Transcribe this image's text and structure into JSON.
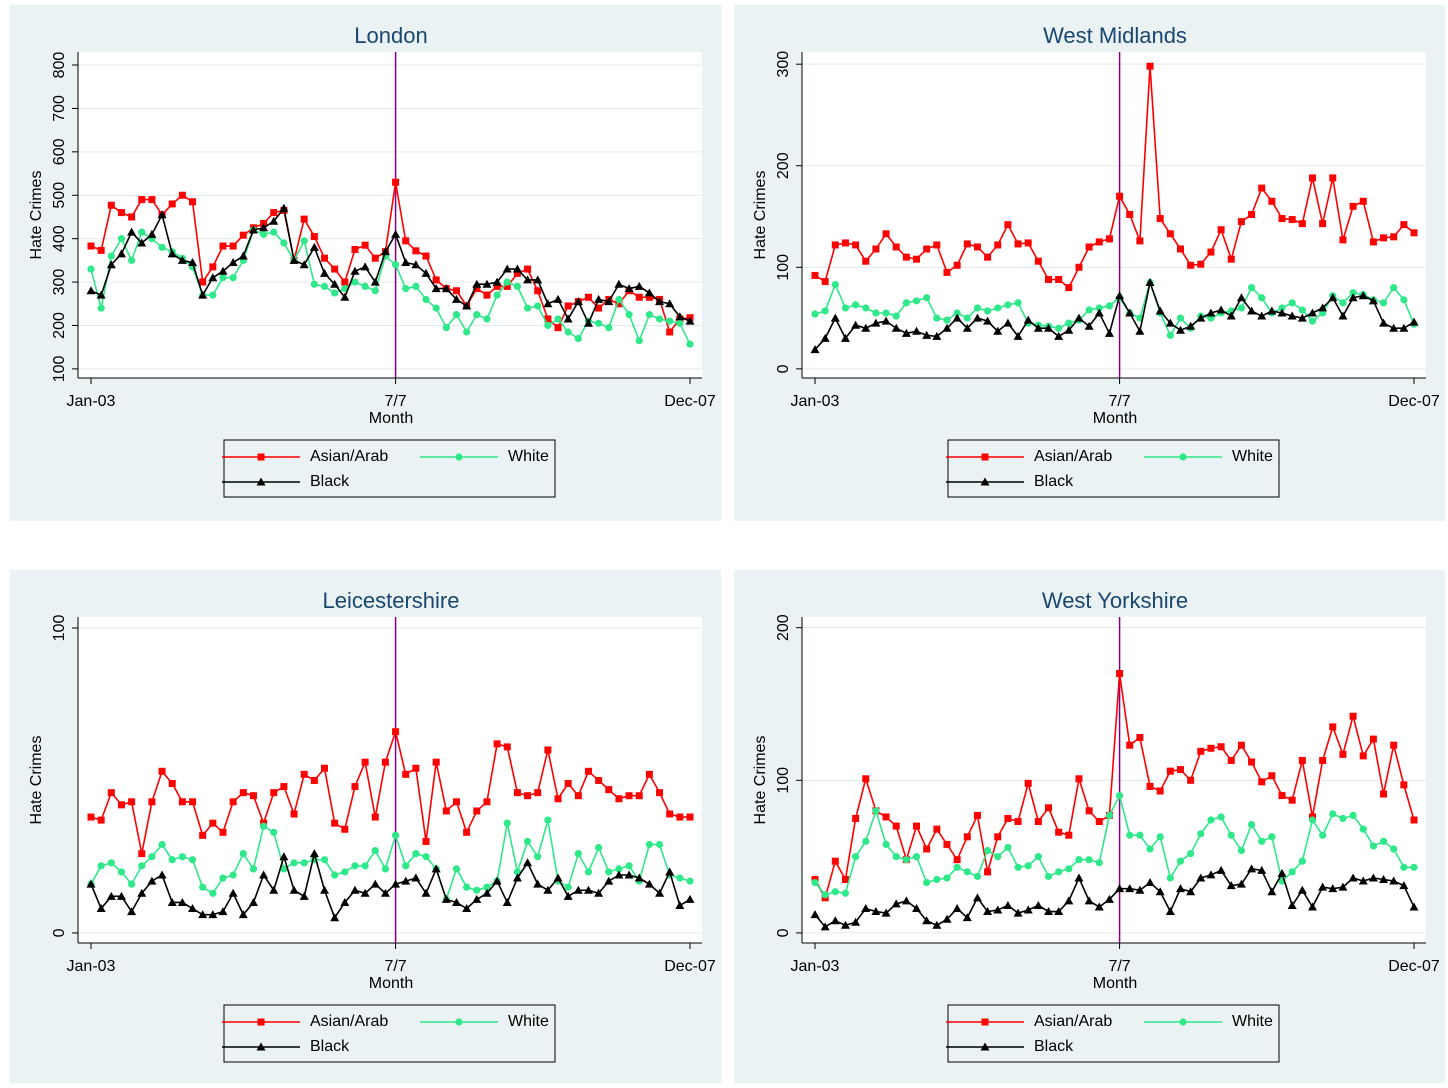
{
  "chart_data": [
    {
      "type": "line",
      "title": "London",
      "y_label": "Hate Crimes",
      "x_label": "Month",
      "legend_position": "bottom",
      "grid": true,
      "categories": [
        "Jan-03",
        null,
        null,
        null,
        null,
        null,
        null,
        null,
        null,
        null,
        null,
        null,
        null,
        null,
        null,
        null,
        null,
        null,
        null,
        null,
        null,
        null,
        null,
        null,
        null,
        null,
        null,
        null,
        null,
        null,
        "7/7",
        null,
        null,
        null,
        null,
        null,
        null,
        null,
        null,
        null,
        null,
        null,
        null,
        null,
        null,
        null,
        null,
        null,
        null,
        null,
        null,
        null,
        null,
        null,
        null,
        null,
        null,
        null,
        null,
        "Dec-07"
      ],
      "ylim": [
        79,
        830
      ],
      "yticks": [
        100,
        200,
        300,
        400,
        500,
        600,
        700,
        800
      ],
      "series": [
        {
          "name": "Asian/Arab",
          "color": "#ff0000",
          "marker": "square",
          "values": [
            383,
            373,
            477,
            460,
            450,
            490,
            490,
            455,
            480,
            500,
            485,
            300,
            335,
            383,
            383,
            408,
            425,
            435,
            460,
            465,
            350,
            445,
            405,
            355,
            330,
            300,
            375,
            385,
            355,
            370,
            530,
            395,
            372,
            360,
            305,
            285,
            280,
            245,
            285,
            270,
            290,
            290,
            320,
            330,
            280,
            215,
            195,
            245,
            255,
            265,
            240,
            260,
            250,
            280,
            265,
            265,
            260,
            185,
            215,
            218
          ]
        },
        {
          "name": "White",
          "color": "#2ee88a",
          "marker": "circle",
          "values": [
            330,
            240,
            360,
            400,
            350,
            415,
            400,
            380,
            370,
            355,
            335,
            270,
            270,
            310,
            310,
            350,
            420,
            410,
            415,
            390,
            350,
            395,
            295,
            290,
            275,
            285,
            300,
            290,
            280,
            360,
            340,
            285,
            290,
            260,
            240,
            195,
            225,
            185,
            225,
            215,
            270,
            300,
            290,
            240,
            245,
            200,
            215,
            185,
            170,
            210,
            205,
            195,
            260,
            225,
            165,
            225,
            215,
            210,
            205,
            157
          ]
        },
        {
          "name": "Black",
          "color": "#000000",
          "marker": "triangle",
          "values": [
            280,
            270,
            340,
            365,
            415,
            390,
            410,
            455,
            365,
            350,
            345,
            270,
            310,
            325,
            345,
            360,
            420,
            425,
            440,
            470,
            350,
            340,
            380,
            320,
            295,
            265,
            325,
            335,
            300,
            370,
            410,
            345,
            340,
            320,
            285,
            285,
            260,
            245,
            295,
            295,
            300,
            330,
            330,
            305,
            305,
            250,
            260,
            215,
            255,
            205,
            260,
            255,
            295,
            285,
            290,
            275,
            255,
            250,
            220,
            210
          ]
        }
      ]
    },
    {
      "type": "line",
      "title": "West Midlands",
      "y_label": "Hate Crimes",
      "x_label": "Month",
      "legend_position": "bottom",
      "grid": true,
      "categories": [
        "Jan-03",
        null,
        null,
        null,
        null,
        null,
        null,
        null,
        null,
        null,
        null,
        null,
        null,
        null,
        null,
        null,
        null,
        null,
        null,
        null,
        null,
        null,
        null,
        null,
        null,
        null,
        null,
        null,
        null,
        null,
        "7/7",
        null,
        null,
        null,
        null,
        null,
        null,
        null,
        null,
        null,
        null,
        null,
        null,
        null,
        null,
        null,
        null,
        null,
        null,
        null,
        null,
        null,
        null,
        null,
        null,
        null,
        null,
        null,
        null,
        "Dec-07"
      ],
      "ylim": [
        -9,
        312
      ],
      "yticks": [
        0,
        100,
        200,
        300
      ],
      "series": [
        {
          "name": "Asian/Arab",
          "color": "#ff0000",
          "marker": "square",
          "values": [
            92,
            86,
            122,
            124,
            122,
            106,
            118,
            133,
            120,
            110,
            108,
            118,
            122,
            95,
            102,
            123,
            120,
            110,
            122,
            142,
            123,
            124,
            106,
            88,
            88,
            80,
            100,
            120,
            125,
            128,
            170,
            152,
            126,
            298,
            148,
            133,
            118,
            102,
            103,
            115,
            137,
            108,
            145,
            152,
            178,
            165,
            148,
            147,
            143,
            188,
            143,
            188,
            127,
            160,
            165,
            125,
            129,
            130,
            142,
            134
          ]
        },
        {
          "name": "White",
          "color": "#2ee88a",
          "marker": "circle",
          "values": [
            54,
            57,
            83,
            60,
            63,
            60,
            55,
            55,
            52,
            65,
            67,
            70,
            50,
            48,
            55,
            50,
            60,
            57,
            60,
            63,
            65,
            45,
            43,
            42,
            40,
            45,
            48,
            58,
            60,
            62,
            70,
            55,
            50,
            85,
            55,
            33,
            50,
            40,
            52,
            50,
            55,
            57,
            60,
            80,
            70,
            55,
            60,
            65,
            58,
            47,
            55,
            72,
            65,
            75,
            73,
            68,
            65,
            80,
            68,
            44
          ]
        },
        {
          "name": "Black",
          "color": "#000000",
          "marker": "triangle",
          "values": [
            19,
            30,
            50,
            30,
            43,
            40,
            45,
            47,
            40,
            35,
            37,
            33,
            32,
            40,
            50,
            40,
            50,
            47,
            37,
            45,
            32,
            48,
            40,
            40,
            32,
            38,
            50,
            42,
            55,
            35,
            72,
            55,
            37,
            85,
            57,
            45,
            38,
            42,
            50,
            55,
            58,
            52,
            70,
            57,
            52,
            57,
            55,
            52,
            50,
            55,
            60,
            70,
            52,
            70,
            72,
            67,
            45,
            40,
            40,
            46
          ]
        }
      ]
    },
    {
      "type": "line",
      "title": "Leicestershire",
      "y_label": "Hate Crimes",
      "x_label": "Month",
      "legend_position": "bottom",
      "grid": true,
      "categories": [
        "Jan-03",
        null,
        null,
        null,
        null,
        null,
        null,
        null,
        null,
        null,
        null,
        null,
        null,
        null,
        null,
        null,
        null,
        null,
        null,
        null,
        null,
        null,
        null,
        null,
        null,
        null,
        null,
        null,
        null,
        null,
        "7/7",
        null,
        null,
        null,
        null,
        null,
        null,
        null,
        null,
        null,
        null,
        null,
        null,
        null,
        null,
        null,
        null,
        null,
        null,
        null,
        null,
        null,
        null,
        null,
        null,
        null,
        null,
        null,
        null,
        "Dec-07"
      ],
      "ylim": [
        -3.3,
        103.6
      ],
      "yticks": [
        0,
        100
      ],
      "series": [
        {
          "name": "Asian/Arab",
          "color": "#ff0000",
          "marker": "square",
          "values": [
            38,
            37,
            46,
            42,
            43,
            26,
            43,
            53,
            49,
            43,
            43,
            32,
            36,
            33,
            43,
            46,
            45,
            36,
            46,
            48,
            39,
            52,
            50,
            54,
            36,
            34,
            48,
            56,
            38,
            56,
            66,
            52,
            54,
            30,
            56,
            40,
            43,
            33,
            40,
            43,
            62,
            61,
            46,
            45,
            46,
            60,
            44,
            49,
            45,
            53,
            50,
            47,
            44,
            45,
            45,
            52,
            46,
            39,
            38,
            38
          ]
        },
        {
          "name": "White",
          "color": "#2ee88a",
          "marker": "circle",
          "values": [
            16,
            22,
            23,
            20,
            16,
            22,
            25,
            29,
            24,
            25,
            24,
            15,
            13,
            18,
            19,
            26,
            21,
            35,
            33,
            21,
            23,
            23,
            24,
            24,
            19,
            20,
            22,
            22,
            27,
            21,
            32,
            22,
            26,
            25,
            21,
            11,
            21,
            15,
            14,
            15,
            17,
            36,
            20,
            30,
            25,
            37,
            17,
            15,
            26,
            20,
            28,
            20,
            21,
            22,
            17,
            29,
            29,
            19,
            18,
            17
          ]
        },
        {
          "name": "Black",
          "color": "#000000",
          "marker": "triangle",
          "values": [
            16,
            8,
            12,
            12,
            7,
            13,
            17,
            19,
            10,
            10,
            8,
            6,
            6,
            7,
            13,
            6,
            10,
            19,
            14,
            25,
            14,
            12,
            26,
            14,
            5,
            10,
            14,
            13,
            16,
            13,
            16,
            17,
            18,
            13,
            21,
            11,
            10,
            8,
            11,
            13,
            17,
            10,
            18,
            23,
            16,
            14,
            18,
            12,
            14,
            14,
            13,
            17,
            19,
            19,
            18,
            16,
            13,
            20,
            9,
            11
          ]
        }
      ]
    },
    {
      "type": "line",
      "title": "West Yorkshire",
      "y_label": "Hate Crimes",
      "x_label": "Month",
      "legend_position": "bottom",
      "grid": true,
      "categories": [
        "Jan-03",
        null,
        null,
        null,
        null,
        null,
        null,
        null,
        null,
        null,
        null,
        null,
        null,
        null,
        null,
        null,
        null,
        null,
        null,
        null,
        null,
        null,
        null,
        null,
        null,
        null,
        null,
        null,
        null,
        null,
        "7/7",
        null,
        null,
        null,
        null,
        null,
        null,
        null,
        null,
        null,
        null,
        null,
        null,
        null,
        null,
        null,
        null,
        null,
        null,
        null,
        null,
        null,
        null,
        null,
        null,
        null,
        null,
        null,
        null,
        "Dec-07"
      ],
      "ylim": [
        -6.6,
        207
      ],
      "yticks": [
        0,
        100,
        200
      ],
      "series": [
        {
          "name": "Asian/Arab",
          "color": "#ff0000",
          "marker": "square",
          "values": [
            35,
            23,
            47,
            35,
            75,
            101,
            80,
            76,
            70,
            48,
            70,
            55,
            68,
            58,
            48,
            63,
            77,
            40,
            63,
            75,
            73,
            98,
            73,
            82,
            66,
            64,
            101,
            80,
            73,
            77,
            170,
            123,
            128,
            96,
            93,
            106,
            107,
            100,
            119,
            121,
            122,
            113,
            123,
            112,
            99,
            103,
            90,
            87,
            113,
            76,
            113,
            135,
            117,
            142,
            116,
            127,
            91,
            123,
            97,
            74
          ]
        },
        {
          "name": "White",
          "color": "#2ee88a",
          "marker": "circle",
          "values": [
            33,
            25,
            27,
            26,
            50,
            60,
            80,
            58,
            50,
            48,
            50,
            33,
            35,
            36,
            43,
            40,
            37,
            54,
            50,
            56,
            43,
            44,
            50,
            37,
            40,
            42,
            48,
            48,
            46,
            77,
            90,
            64,
            64,
            55,
            63,
            36,
            47,
            52,
            65,
            74,
            76,
            64,
            54,
            71,
            60,
            63,
            34,
            40,
            47,
            74,
            64,
            78,
            75,
            77,
            68,
            57,
            60,
            55,
            43,
            43
          ]
        },
        {
          "name": "Black",
          "color": "#000000",
          "marker": "triangle",
          "values": [
            12,
            4,
            8,
            5,
            7,
            16,
            14,
            13,
            19,
            21,
            16,
            8,
            5,
            9,
            16,
            10,
            23,
            14,
            15,
            18,
            13,
            15,
            18,
            14,
            14,
            21,
            36,
            21,
            17,
            22,
            29,
            29,
            28,
            33,
            27,
            14,
            29,
            27,
            36,
            38,
            41,
            31,
            32,
            42,
            41,
            27,
            39,
            18,
            28,
            17,
            30,
            29,
            30,
            36,
            34,
            36,
            35,
            34,
            31,
            17
          ]
        }
      ]
    }
  ]
}
